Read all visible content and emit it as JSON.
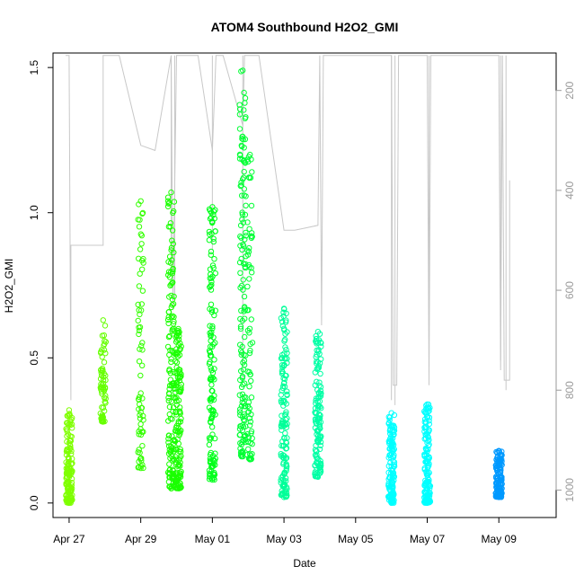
{
  "chart_data": {
    "type": "scatter",
    "title": "ATOM4 Southbound H2O2_GMI",
    "xlabel": "Date",
    "ylabel": "H2O2_GMI",
    "x_ticks": [
      "Apr 27",
      "Apr 29",
      "May 01",
      "May 03",
      "May 05",
      "May 07",
      "May 09"
    ],
    "x_tick_days": [
      0,
      2,
      4,
      6,
      8,
      10,
      12
    ],
    "xlim_days": [
      -0.45,
      13.6
    ],
    "ylim": [
      -0.05,
      1.55
    ],
    "y_ticks": [
      0.0,
      0.5,
      1.0,
      1.5
    ],
    "y_tick_labels": [
      "0.0",
      "0.5",
      "1.0",
      "1.5"
    ],
    "right_axis": {
      "label_color": "#9a9a9a",
      "ticks": [
        200,
        400,
        600,
        800,
        1000
      ],
      "tick_labels": [
        "200",
        "400",
        "600",
        "800",
        "1000"
      ],
      "range": [
        125,
        1055
      ],
      "inverted": true,
      "meaning": "pressure"
    },
    "series": [
      {
        "day": 0.0,
        "ymin": 0.0,
        "ymax": 0.32,
        "color": "#7fff00",
        "dense": true
      },
      {
        "day": 0.95,
        "ymin": 0.28,
        "ymax": 0.63,
        "color": "#66ff00",
        "dense": false
      },
      {
        "day": 2.0,
        "ymin": 0.12,
        "ymax": 1.04,
        "color": "#33ff00",
        "dense": false
      },
      {
        "day": 2.85,
        "ymin": 0.05,
        "ymax": 1.07,
        "color": "#1aff00",
        "dense": true
      },
      {
        "day": 3.05,
        "ymin": 0.05,
        "ymax": 0.6,
        "color": "#1aff00",
        "dense": true
      },
      {
        "day": 4.0,
        "ymin": 0.08,
        "ymax": 1.02,
        "color": "#00ff1a",
        "dense": true
      },
      {
        "day": 4.85,
        "ymin": 0.16,
        "ymax": 1.49,
        "color": "#00ff33",
        "dense": true
      },
      {
        "day": 5.05,
        "ymin": 0.15,
        "ymax": 1.2,
        "color": "#00ff33",
        "dense": false
      },
      {
        "day": 6.0,
        "ymin": 0.02,
        "ymax": 0.67,
        "color": "#00ff99",
        "dense": true
      },
      {
        "day": 6.95,
        "ymin": 0.09,
        "ymax": 0.59,
        "color": "#00ffa5",
        "dense": true
      },
      {
        "day": 9.0,
        "ymin": 0.0,
        "ymax": 0.31,
        "color": "#00ffff",
        "dense": true
      },
      {
        "day": 10.0,
        "ymin": 0.0,
        "ymax": 0.34,
        "color": "#00ffff",
        "dense": true
      },
      {
        "day": 12.0,
        "ymin": 0.02,
        "ymax": 0.18,
        "color": "#0099ff",
        "dense": true
      }
    ],
    "pressure_track": {
      "color": "#c8c8c8",
      "points": [
        [
          -0.1,
          130
        ],
        [
          0.0,
          130
        ],
        [
          0.05,
          820
        ],
        [
          0.05,
          510
        ],
        [
          0.95,
          510
        ],
        [
          0.95,
          130
        ],
        [
          1.4,
          130
        ],
        [
          2.0,
          310
        ],
        [
          2.4,
          320
        ],
        [
          2.85,
          130
        ],
        [
          2.9,
          640
        ],
        [
          3.0,
          130
        ],
        [
          3.2,
          130
        ],
        [
          3.6,
          130
        ],
        [
          4.0,
          320
        ],
        [
          4.1,
          130
        ],
        [
          4.3,
          130
        ],
        [
          4.85,
          270
        ],
        [
          4.9,
          130
        ],
        [
          5.1,
          130
        ],
        [
          5.3,
          130
        ],
        [
          6.0,
          480
        ],
        [
          6.3,
          480
        ],
        [
          6.95,
          470
        ],
        [
          7.0,
          130
        ],
        [
          7.05,
          670
        ],
        [
          7.1,
          130
        ],
        [
          9.0,
          130
        ],
        [
          9.05,
          790
        ],
        [
          9.15,
          790
        ],
        [
          9.2,
          130
        ],
        [
          10.0,
          130
        ],
        [
          10.05,
          790
        ],
        [
          10.1,
          130
        ],
        [
          12.0,
          130
        ],
        [
          12.05,
          760
        ],
        [
          12.1,
          130
        ],
        [
          12.15,
          780
        ],
        [
          12.3,
          780
        ],
        [
          12.3,
          380
        ]
      ]
    }
  }
}
